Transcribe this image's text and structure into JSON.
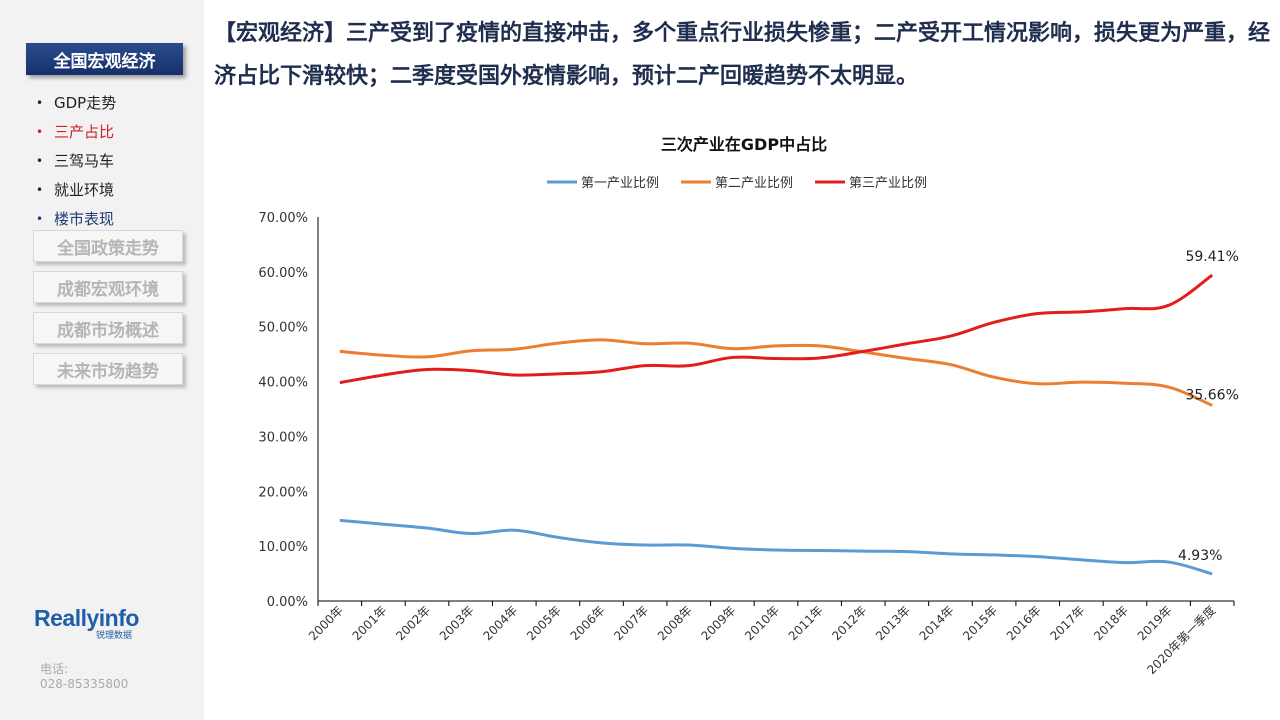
{
  "headline": "【宏观经济】三产受到了疫情的直接冲击，多个重点行业损失惨重；二产受开工情况影响，损失更为严重，经济占比下滑较快；二季度受国外疫情影响，预计二产回暖趋势不太明显。",
  "sidebar": {
    "active_section": "全国宏观经济",
    "sub_items": [
      {
        "label": "GDP走势",
        "state": "normal"
      },
      {
        "label": "三产占比",
        "state": "active"
      },
      {
        "label": "三驾马车",
        "state": "normal"
      },
      {
        "label": "就业环境",
        "state": "normal"
      },
      {
        "label": "楼市表现",
        "state": "blue"
      }
    ],
    "sections": [
      "全国政策走势",
      "成都宏观环境",
      "成都市场概述",
      "未来市场趋势"
    ],
    "logo_text": "Reallyinfo",
    "logo_sub": "锐理数据",
    "contact_label": "电话:",
    "contact_phone": "028-85335800"
  },
  "chart_data": {
    "type": "line",
    "title": "三次产业在GDP中占比",
    "categories": [
      "2000年",
      "2001年",
      "2002年",
      "2003年",
      "2004年",
      "2005年",
      "2006年",
      "2007年",
      "2008年",
      "2009年",
      "2010年",
      "2011年",
      "2012年",
      "2013年",
      "2014年",
      "2015年",
      "2016年",
      "2017年",
      "2018年",
      "2019年",
      "2020年第一季度"
    ],
    "series": [
      {
        "name": "第一产业比例",
        "color": "#5b9bd5",
        "values": [
          14.7,
          14.0,
          13.3,
          12.3,
          12.9,
          11.6,
          10.6,
          10.2,
          10.2,
          9.6,
          9.3,
          9.2,
          9.1,
          9.0,
          8.6,
          8.4,
          8.1,
          7.5,
          7.0,
          7.1,
          4.93
        ]
      },
      {
        "name": "第二产业比例",
        "color": "#ed7d31",
        "values": [
          45.5,
          44.8,
          44.5,
          45.6,
          45.9,
          47.0,
          47.6,
          46.9,
          47.0,
          46.0,
          46.5,
          46.5,
          45.4,
          44.2,
          43.1,
          40.8,
          39.6,
          39.9,
          39.7,
          39.0,
          35.66
        ]
      },
      {
        "name": "第三产业比例",
        "color": "#e51c1c",
        "values": [
          39.8,
          41.2,
          42.2,
          42.0,
          41.2,
          41.4,
          41.8,
          42.9,
          42.9,
          44.4,
          44.2,
          44.3,
          45.5,
          46.9,
          48.3,
          50.8,
          52.4,
          52.7,
          53.3,
          53.9,
          59.41
        ]
      }
    ],
    "data_labels": [
      "4.93%",
      "35.66%",
      "59.41%"
    ],
    "y_ticks": [
      "0.00%",
      "10.00%",
      "20.00%",
      "30.00%",
      "40.00%",
      "50.00%",
      "60.00%",
      "70.00%"
    ],
    "ylim": [
      0,
      70
    ],
    "legend_position": "top-center",
    "grid": false
  }
}
